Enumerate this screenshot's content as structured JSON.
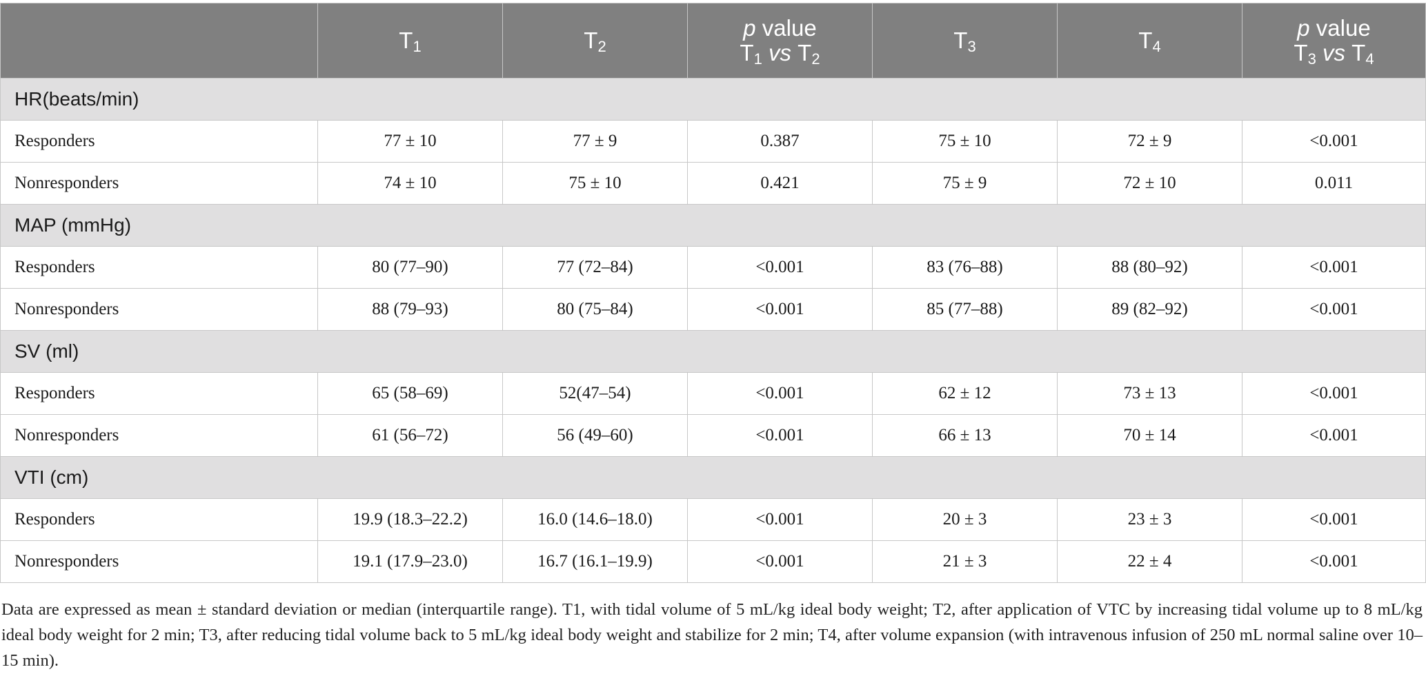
{
  "header": {
    "blank": "",
    "t1": {
      "base": "T",
      "sub": "1"
    },
    "t2": {
      "base": "T",
      "sub": "2"
    },
    "p12": {
      "p": "p",
      "value": " value",
      "a": "T",
      "a_sub": "1",
      "vs": "vs",
      "b": "T",
      "b_sub": "2"
    },
    "t3": {
      "base": "T",
      "sub": "3"
    },
    "t4": {
      "base": "T",
      "sub": "4"
    },
    "p34": {
      "p": "p",
      "value": " value",
      "a": "T",
      "a_sub": "3",
      "vs": "vs",
      "b": "T",
      "b_sub": "4"
    }
  },
  "groups": [
    {
      "title": "HR(beats/min)",
      "rows": [
        {
          "label": "Responders",
          "t1": "77 ± 10",
          "t2": "77 ± 9",
          "p12": "0.387",
          "t3": "75 ± 10",
          "t4": "72 ± 9",
          "p34": "<0.001"
        },
        {
          "label": "Nonresponders",
          "t1": "74 ± 10",
          "t2": "75 ± 10",
          "p12": "0.421",
          "t3": "75 ± 9",
          "t4": "72 ± 10",
          "p34": "0.011"
        }
      ]
    },
    {
      "title": "MAP (mmHg)",
      "rows": [
        {
          "label": "Responders",
          "t1": "80 (77–90)",
          "t2": "77 (72–84)",
          "p12": "<0.001",
          "t3": "83 (76–88)",
          "t4": "88 (80–92)",
          "p34": "<0.001"
        },
        {
          "label": "Nonresponders",
          "t1": "88 (79–93)",
          "t2": "80 (75–84)",
          "p12": "<0.001",
          "t3": "85 (77–88)",
          "t4": "89 (82–92)",
          "p34": "<0.001"
        }
      ]
    },
    {
      "title": "SV (ml)",
      "rows": [
        {
          "label": "Responders",
          "t1": "65 (58–69)",
          "t2": "52(47–54)",
          "p12": "<0.001",
          "t3": "62 ± 12",
          "t4": "73 ± 13",
          "p34": "<0.001"
        },
        {
          "label": "Nonresponders",
          "t1": "61 (56–72)",
          "t2": "56 (49–60)",
          "p12": "<0.001",
          "t3": "66 ± 13",
          "t4": "70 ± 14",
          "p34": "<0.001"
        }
      ]
    },
    {
      "title": "VTI (cm)",
      "rows": [
        {
          "label": "Responders",
          "t1": "19.9 (18.3–22.2)",
          "t2": "16.0 (14.6–18.0)",
          "p12": "<0.001",
          "t3": "20 ± 3",
          "t4": "23 ± 3",
          "p34": "<0.001"
        },
        {
          "label": "Nonresponders",
          "t1": "19.1 (17.9–23.0)",
          "t2": "16.7 (16.1–19.9)",
          "p12": "<0.001",
          "t3": "21 ± 3",
          "t4": "22 ± 4",
          "p34": "<0.001"
        }
      ]
    }
  ],
  "footnote": "Data are expressed as mean ± standard deviation or median (interquartile range). T1, with tidal volume of 5 mL/kg ideal body weight; T2, after application of VTC by increasing tidal volume up to 8 mL/kg ideal body weight for 2 min; T3, after reducing tidal volume back to 5 mL/kg ideal body weight and stabilize for 2 min; T4, after volume expansion (with intravenous infusion of 250 mL normal saline over 10–15 min)."
}
